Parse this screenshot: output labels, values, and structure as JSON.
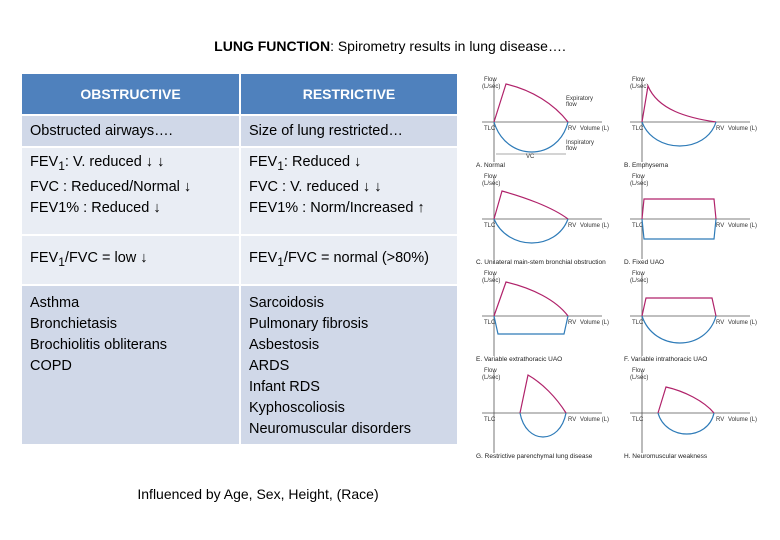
{
  "title": {
    "bold": "LUNG FUNCTION",
    "rest": ": Spirometry results in lung disease…."
  },
  "table": {
    "headers": [
      "OBSTRUCTIVE",
      "RESTRICTIVE"
    ],
    "obstructive": {
      "summary": "Obstructed airways….",
      "fev1": {
        "pre": "FEV",
        "sub": "1",
        "post": ": V. reduced ↓ ↓"
      },
      "fvc": "FVC : Reduced/Normal ↓",
      "fev1pct": "FEV1% : Reduced ↓",
      "ratio": {
        "pre": "FEV",
        "sub": "1",
        "post": "/FVC = low ↓"
      },
      "conditions": [
        "Asthma",
        "Bronchietasis",
        "Brochiolitis obliterans",
        "COPD"
      ]
    },
    "restrictive": {
      "summary": "Size of lung restricted…",
      "fev1": {
        "pre": "FEV",
        "sub": "1",
        "post": ": Reduced ↓"
      },
      "fvc": "FVC : V. reduced ↓ ↓",
      "fev1pct": "FEV1% : Norm/Increased ↑",
      "ratio": {
        "pre": "FEV",
        "sub": "1",
        "post": "/FVC = normal (>80%)"
      },
      "conditions": [
        "Sarcoidosis",
        "Pulmonary fibrosis",
        "Asbestosis",
        "ARDS",
        "Infant RDS",
        "Kyphoscoliosis",
        "Neuromuscular disorders"
      ]
    }
  },
  "note": "Influenced by Age, Sex, Height, (Race)",
  "figure": {
    "colors": {
      "expiratory": "#b0226a",
      "inspiratory": "#2e7bb8",
      "axis": "#555555"
    },
    "axis": {
      "flow": "Flow",
      "flow_unit": "(L/sec)",
      "tlc": "TLC",
      "rv": "RV",
      "volume": "Volume (L)"
    },
    "annotations": {
      "expiratory": [
        "Expiratory",
        "flow"
      ],
      "inspiratory": [
        "Inspiratory",
        "flow"
      ],
      "vc": "VC"
    },
    "panels": [
      "A. Normal",
      "B. Emphysema",
      "C. Unilateral main-stem bronchial obstruction",
      "D. Fixed UAO",
      "E. Variable extrathoracic UAO",
      "F. Variable intrathoracic UAO",
      "G. Restrictive parenchymal lung disease",
      "H. Neuromuscular weakness"
    ]
  }
}
